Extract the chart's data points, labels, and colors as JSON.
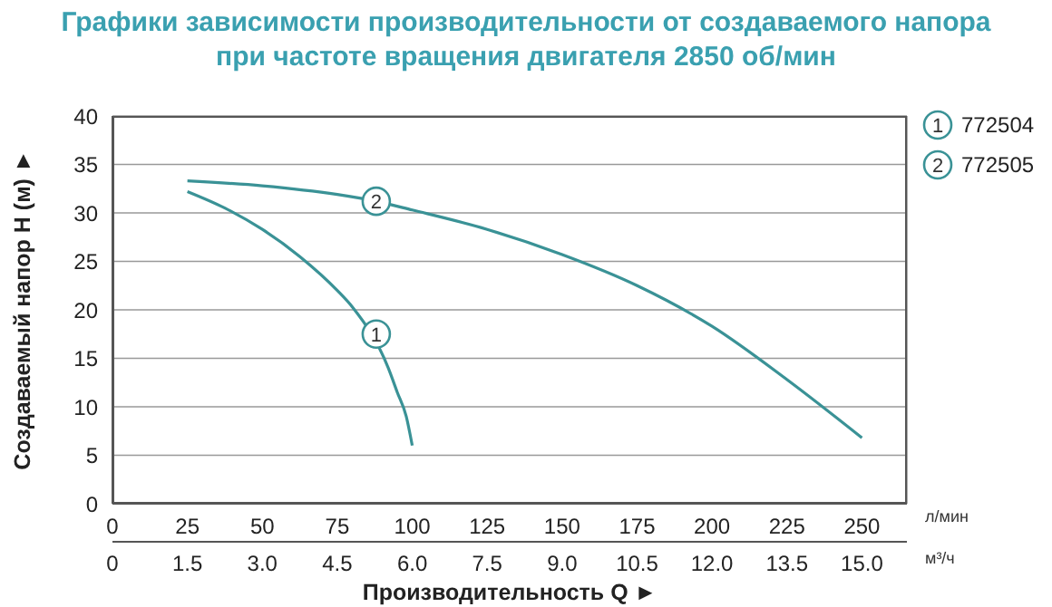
{
  "chart_data": {
    "type": "line",
    "title": "Графики зависимости производительности от создаваемого напора\nпри частоте вращения двигателя 2850 об/мин",
    "xlabel": "Производительность Q ►",
    "ylabel": "Создаваемый напор H (м) ►",
    "series": [
      {
        "name": "772504",
        "color": "#3a9296",
        "x": [
          25,
          37.5,
          50,
          62.5,
          75,
          80,
          92,
          95,
          98,
          100
        ],
        "values": [
          32.2,
          30.5,
          28.3,
          25.5,
          22,
          20.3,
          14,
          11.5,
          9,
          6
        ]
      },
      {
        "name": "772505",
        "color": "#3a9296",
        "x": [
          25,
          50,
          75,
          88,
          100,
          125,
          150,
          175,
          200,
          225,
          250
        ],
        "values": [
          33.3,
          32.8,
          31.9,
          31.2,
          30.3,
          28.3,
          25.7,
          22.5,
          18.3,
          12.8,
          6.8
        ]
      }
    ],
    "annotations": [
      {
        "text": "1",
        "x": 88,
        "y": 17.5
      },
      {
        "text": "2",
        "x": 88,
        "y": 31.2
      },
      "л/мин",
      "м³/ч"
    ],
    "xlim": [
      0,
      265
    ],
    "xticks": [
      0,
      25,
      50,
      75,
      100,
      125,
      150,
      175,
      200,
      225,
      250
    ],
    "x2lim": [
      0,
      15.9
    ],
    "x2ticks": [
      0,
      {
        "value": 1.5,
        "label": "1.5"
      },
      {
        "value": 3,
        "label": "3.0"
      },
      {
        "value": 4.5,
        "label": "4.5"
      },
      {
        "value": 6,
        "label": "6.0"
      },
      {
        "value": 7.5,
        "label": "7.5"
      },
      {
        "value": 9,
        "label": "9.0"
      },
      {
        "value": 10.5,
        "label": "10.5"
      },
      {
        "value": 12,
        "label": "12.0"
      },
      {
        "value": 13.5,
        "label": "13.5"
      },
      {
        "value": 15,
        "label": "15.0"
      }
    ],
    "ylim": [
      0,
      40
    ],
    "yticks": [
      0,
      5,
      10,
      15,
      20,
      25,
      30,
      35,
      40
    ],
    "grid": true,
    "legend": "top right",
    "marker": "none",
    "line_style": "solid"
  }
}
